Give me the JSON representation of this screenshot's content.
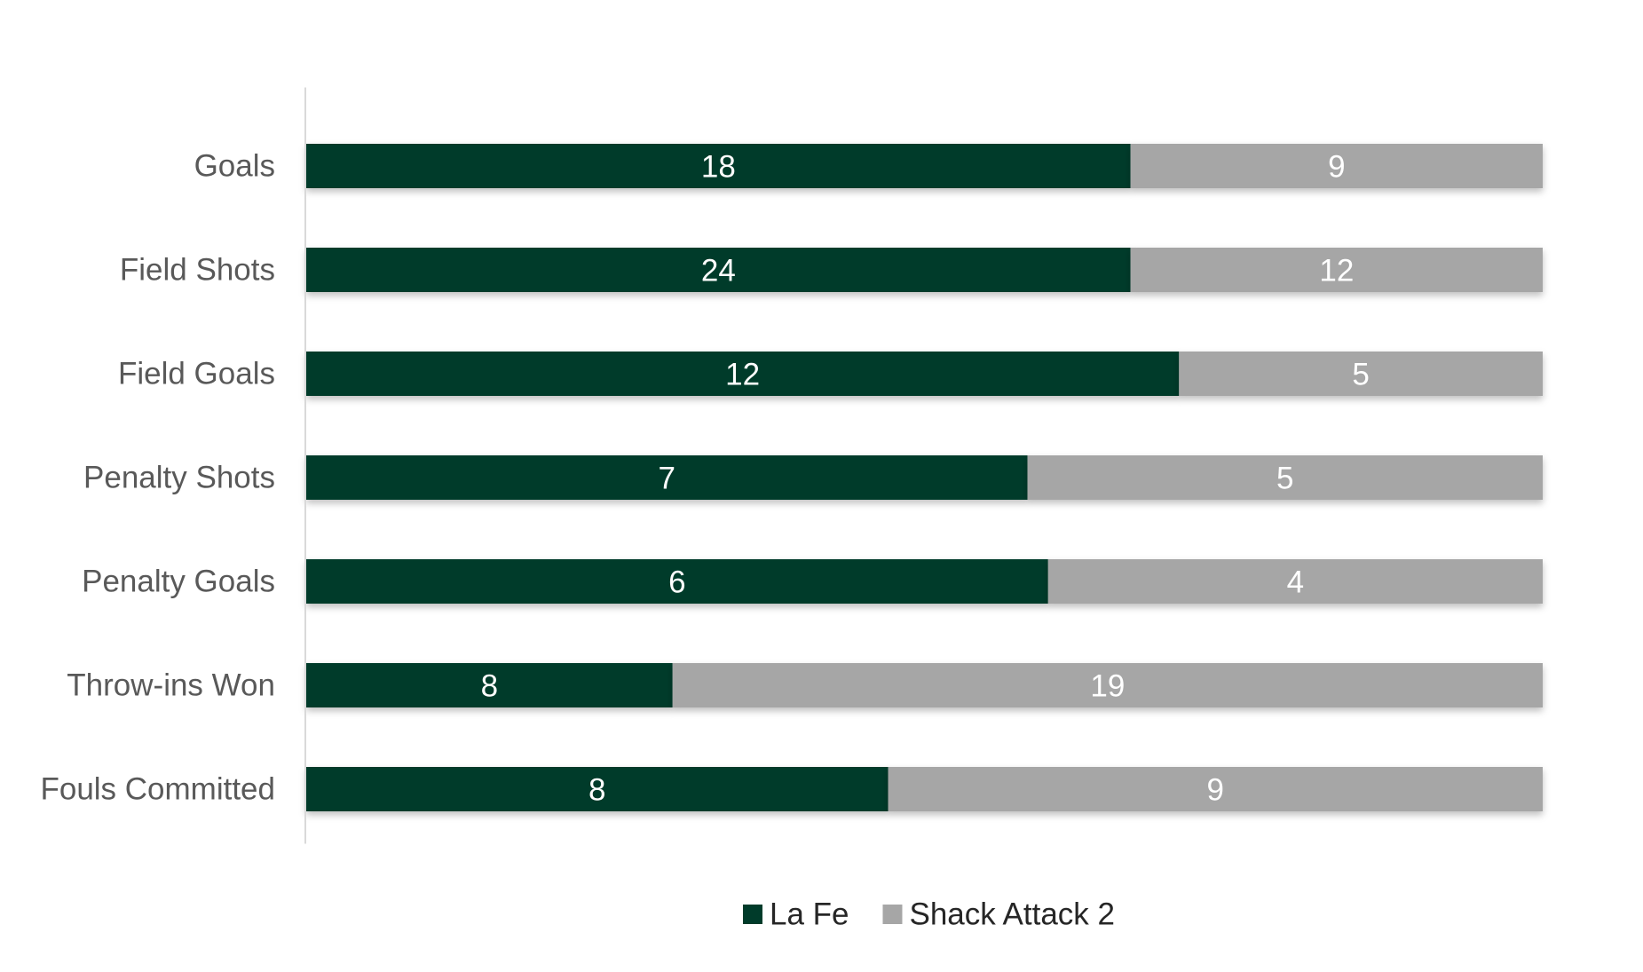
{
  "chart_data": {
    "type": "bar",
    "orientation": "horizontal",
    "stacking": "percent",
    "title": "",
    "xlabel": "",
    "ylabel": "",
    "categories": [
      "Goals",
      "Field Shots",
      "Field Goals",
      "Penalty Shots",
      "Penalty Goals",
      "Throw-ins Won",
      "Fouls Committed"
    ],
    "series": [
      {
        "name": "La Fe",
        "color": "#003b2a",
        "values": [
          18,
          24,
          12,
          7,
          6,
          8,
          8
        ]
      },
      {
        "name": "Shack Attack 2",
        "color": "#a6a6a6",
        "values": [
          9,
          12,
          5,
          5,
          4,
          19,
          9
        ]
      }
    ],
    "data_labels": true,
    "grid": false,
    "legend_position": "bottom"
  }
}
